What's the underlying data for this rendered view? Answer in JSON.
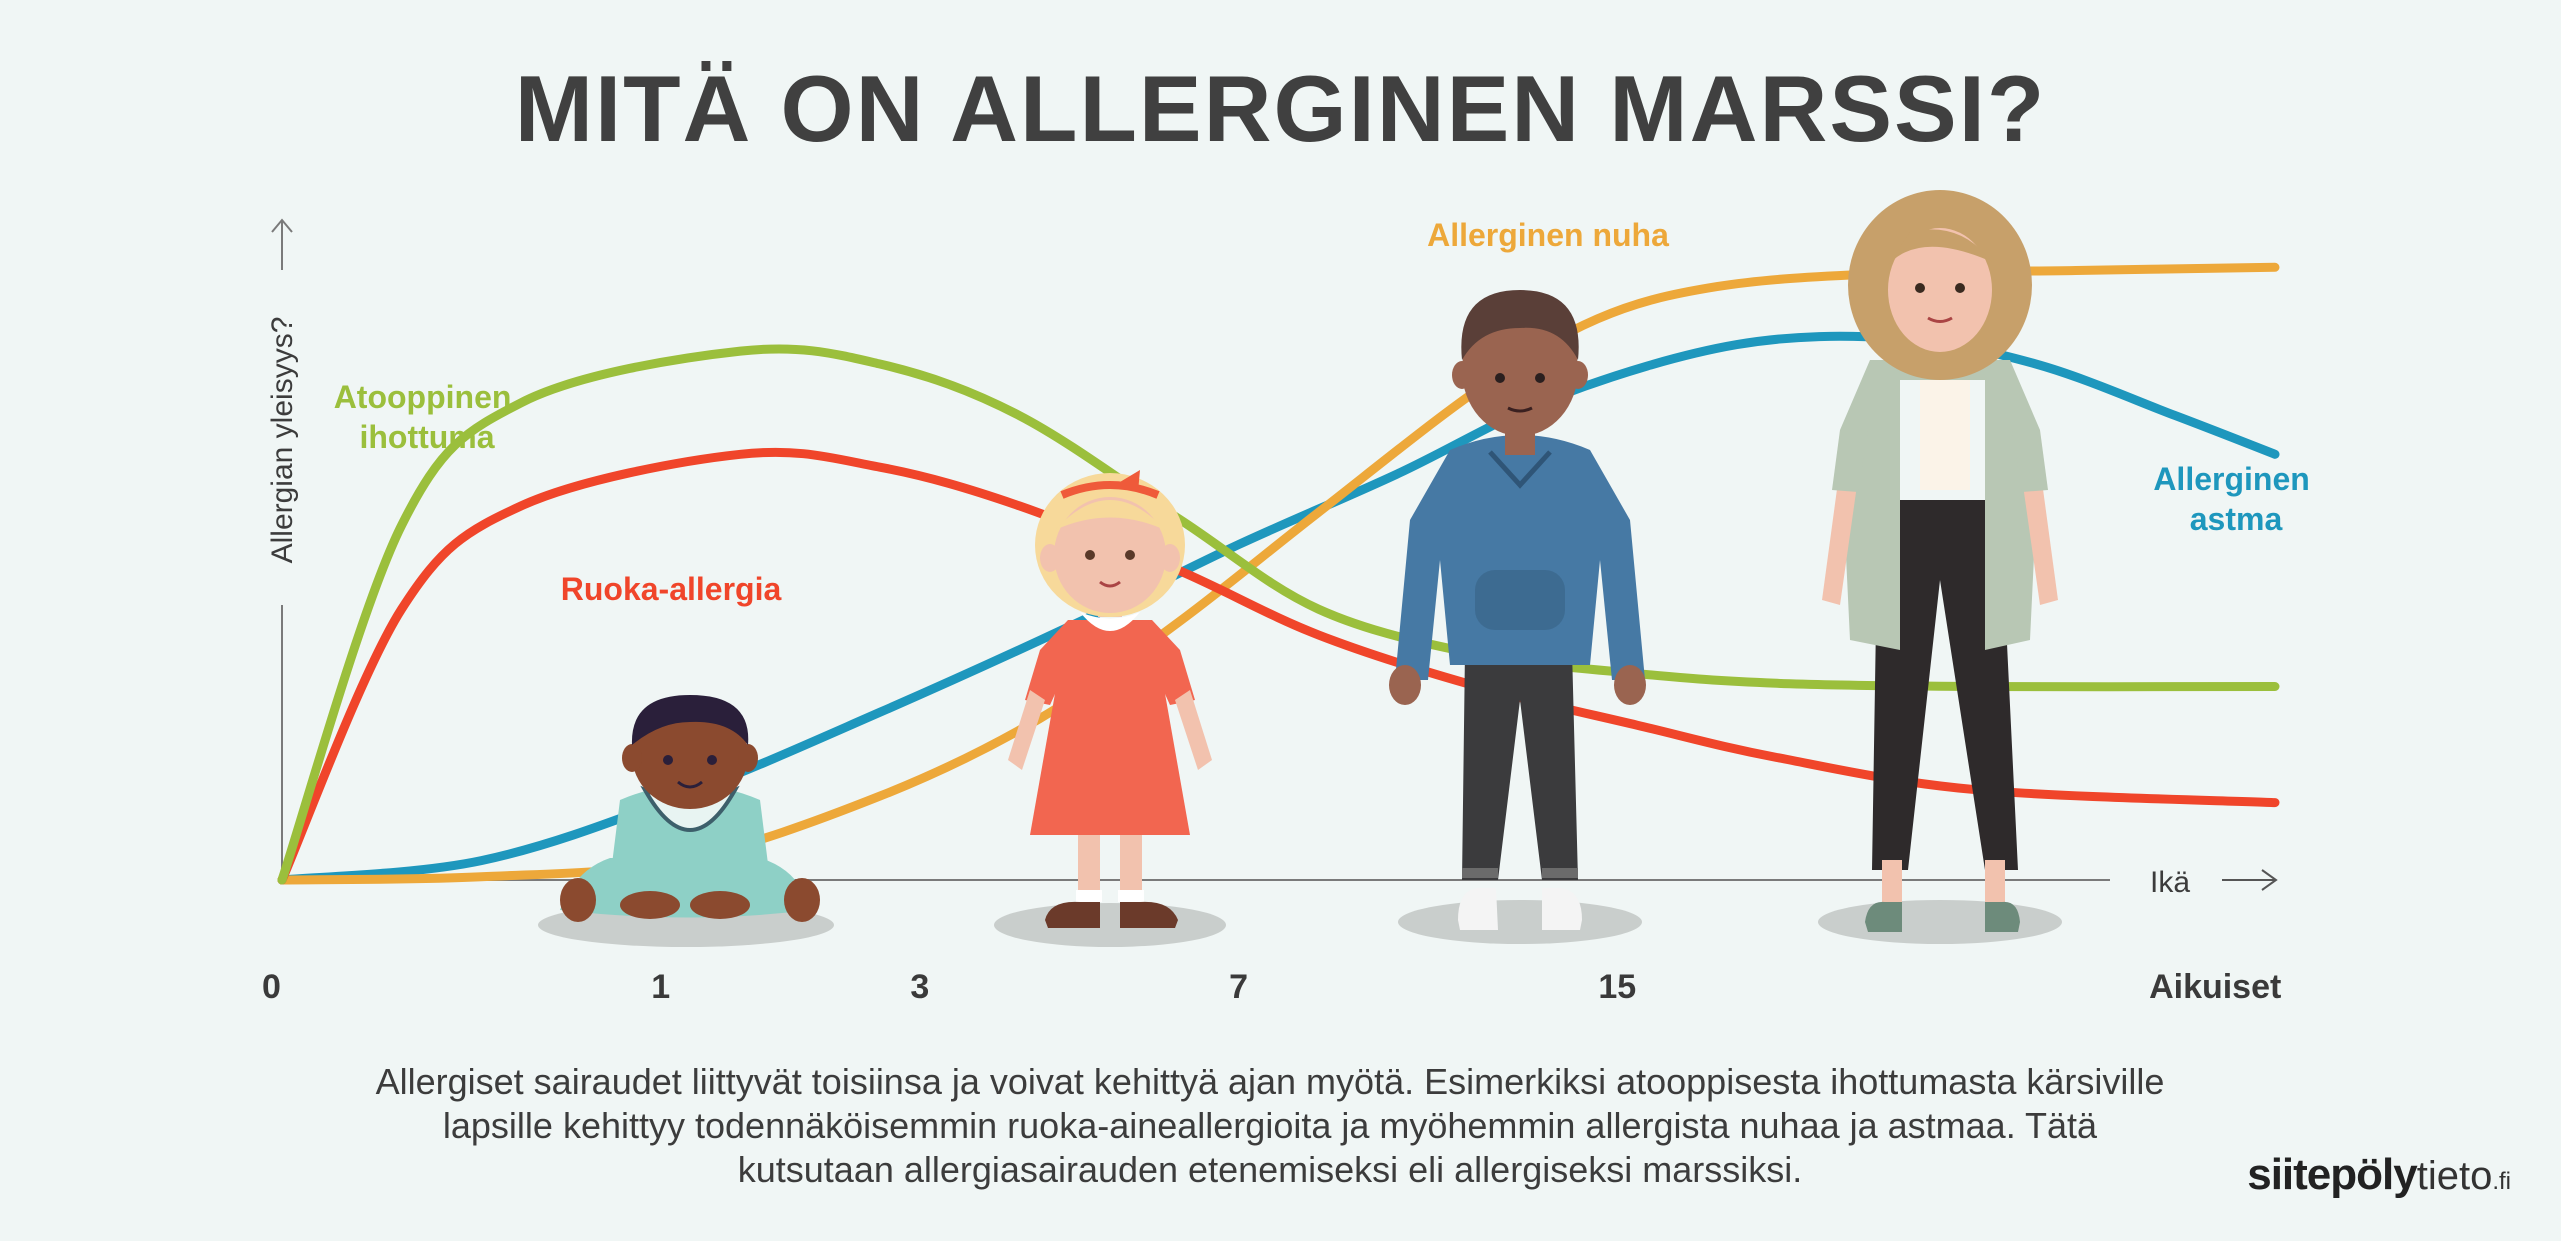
{
  "title": "MITÄ ON ALLERGINEN MARSSI?",
  "colors": {
    "atopic": "#9bbf3c",
    "food": "#f0452a",
    "rhinitis": "#eda83a",
    "asthma": "#1e97bd",
    "text": "#404040",
    "background": "#f0f6f5"
  },
  "chart_data": {
    "type": "line",
    "title": "MITÄ ON ALLERGINEN MARSSI?",
    "xlabel": "Ikä",
    "ylabel": "Allergian yleisyys?",
    "x_ticks": [
      "0",
      "1",
      "3",
      "7",
      "15",
      "Aikuiset"
    ],
    "x_tick_positions": [
      0,
      1.9,
      3.2,
      4.8,
      6.7,
      9.7
    ],
    "xlim": [
      0,
      10
    ],
    "ylim": [
      0,
      100
    ],
    "grid": false,
    "series": [
      {
        "name": "Atooppinen ihottuma",
        "color": "#9bbf3c",
        "x": [
          0,
          0.6,
          1.2,
          2.3,
          3.0,
          3.7,
          4.5,
          5.2,
          6.0,
          6.8,
          7.5,
          8.5,
          10
        ],
        "y": [
          0,
          55,
          74,
          82,
          80,
          72,
          56,
          42,
          35,
          32,
          30.5,
          30,
          30
        ]
      },
      {
        "name": "Ruoka-allergia",
        "color": "#f0452a",
        "x": [
          0,
          0.6,
          1.2,
          2.3,
          3.0,
          3.7,
          4.5,
          5.2,
          6.0,
          6.8,
          7.5,
          8.5,
          10
        ],
        "y": [
          0,
          42,
          58,
          66,
          64,
          58,
          48,
          38,
          30,
          24,
          19,
          14,
          12
        ]
      },
      {
        "name": "Allerginen nuha",
        "color": "#eda83a",
        "x": [
          0,
          1,
          2,
          3,
          3.8,
          4.5,
          5.2,
          6.0,
          6.6,
          7.2,
          8,
          9,
          10
        ],
        "y": [
          0,
          0.5,
          3,
          13,
          25,
          40,
          57,
          76,
          87,
          92,
          94,
          94.5,
          95
        ]
      },
      {
        "name": "Allerginen astma",
        "color": "#1e97bd",
        "x": [
          0,
          1,
          2,
          3,
          4,
          4.8,
          5.6,
          6.4,
          7.3,
          8.1,
          8.8,
          9.5,
          10
        ],
        "y": [
          0,
          3,
          13,
          26,
          40,
          52,
          63,
          75,
          83,
          84,
          80,
          72,
          66
        ]
      }
    ],
    "annotations": [
      {
        "series": "Atooppinen ihottuma",
        "text_lines": [
          "Atooppinen",
          "ihottuma"
        ]
      },
      {
        "series": "Ruoka-allergia",
        "text_lines": [
          "Ruoka-allergia"
        ]
      },
      {
        "series": "Allerginen nuha",
        "text_lines": [
          "Allerginen nuha"
        ]
      },
      {
        "series": "Allerginen astma",
        "text_lines": [
          "Allerginen",
          "astma"
        ]
      }
    ]
  },
  "figures": [
    {
      "name": "baby"
    },
    {
      "name": "girl"
    },
    {
      "name": "boy"
    },
    {
      "name": "woman"
    }
  ],
  "caption_lines": [
    "Allergiset sairaudet liittyvät toisiinsa ja voivat kehittyä ajan myötä. Esimerkiksi atooppisesta ihottumasta kärsiville",
    "lapsille kehittyy todennäköisemmin ruoka-aineallergioita ja myöhemmin allergista nuhaa ja astmaa. Tätä",
    "kutsutaan allergiasairauden etenemiseksi eli allergiseksi marssiksi."
  ],
  "logo": {
    "bold": "siitepöly",
    "regular": "tieto",
    "suffix": ".fi"
  }
}
